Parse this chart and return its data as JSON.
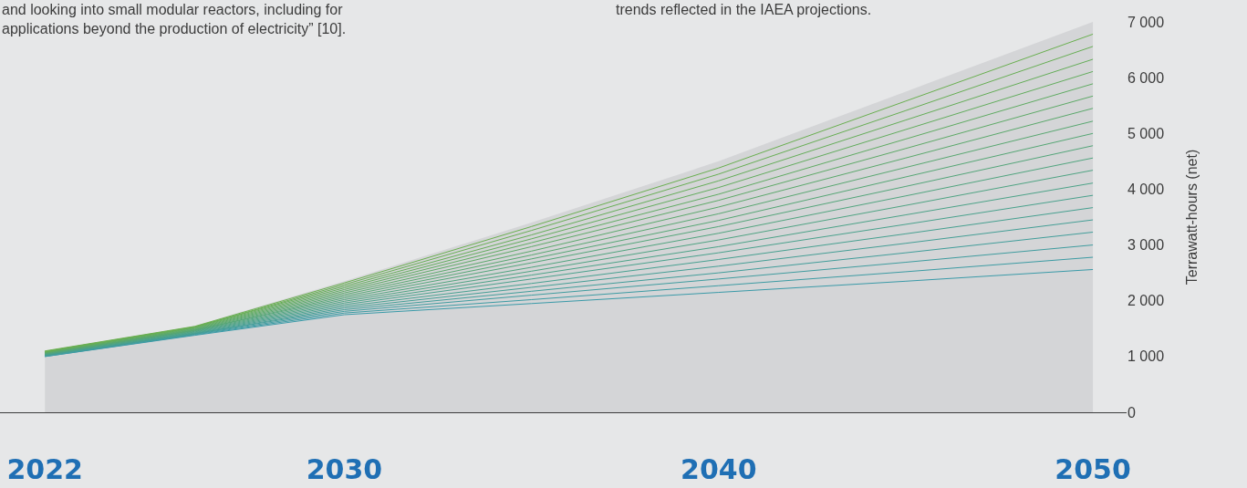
{
  "chart_data": {
    "type": "line",
    "ylabel": "Terrawatt-hours (net)",
    "x": [
      2022,
      2026,
      2030,
      2035,
      2040,
      2045,
      2050
    ],
    "xlim": [
      2020.8,
      2050.9
    ],
    "xticks": [
      2022,
      2030,
      2040,
      2050
    ],
    "ylim": [
      0,
      7000
    ],
    "yticks": [
      0,
      {
        "value": 1000,
        "label": "1 000"
      },
      {
        "value": 2000,
        "label": "2 000"
      },
      {
        "value": 3000,
        "label": "3 000"
      },
      {
        "value": 4000,
        "label": "4 000"
      },
      {
        "value": 5000,
        "label": "5 000"
      },
      {
        "value": 6000,
        "label": "6 000"
      },
      {
        "value": 7000,
        "label": "7 000"
      }
    ],
    "grid": false,
    "annotations": [
      "and looking into small modular reactors, including for\napplications beyond the production of electricity” [10].",
      "trends reflected in the IAEA projections."
    ],
    "series": [
      {
        "type": "area",
        "color": "#d4d5d7",
        "values": [
          1100,
          1550,
          2350,
          3400,
          4500,
          5750,
          7000
        ]
      },
      {
        "color": "#3a9aa8",
        "values": [
          1000,
          1380,
          1750,
          1950,
          2150,
          2350,
          2560
        ]
      },
      {
        "color": "#3c9ba3",
        "values": [
          1000,
          1390,
          1780,
          2020,
          2270,
          2520,
          2780
        ]
      },
      {
        "color": "#3f9c9f",
        "values": [
          1010,
          1400,
          1810,
          2100,
          2390,
          2690,
          3000
        ]
      },
      {
        "color": "#419d9a",
        "values": [
          1020,
          1410,
          1840,
          2170,
          2500,
          2860,
          3230
        ]
      },
      {
        "color": "#449e95",
        "values": [
          1020,
          1410,
          1870,
          2240,
          2620,
          3030,
          3450
        ]
      },
      {
        "color": "#46a090",
        "values": [
          1030,
          1420,
          1900,
          2310,
          2740,
          3200,
          3670
        ]
      },
      {
        "color": "#49a18c",
        "values": [
          1030,
          1430,
          1930,
          2390,
          2860,
          3370,
          3890
        ]
      },
      {
        "color": "#4ba287",
        "values": [
          1040,
          1440,
          1960,
          2460,
          2970,
          3540,
          4110
        ]
      },
      {
        "color": "#4ea382",
        "values": [
          1040,
          1450,
          1990,
          2530,
          3090,
          3710,
          4340
        ]
      },
      {
        "color": "#50a47e",
        "values": [
          1050,
          1460,
          2020,
          2600,
          3210,
          3880,
          4560
        ]
      },
      {
        "color": "#53a579",
        "values": [
          1050,
          1470,
          2050,
          2680,
          3330,
          4050,
          4780
        ]
      },
      {
        "color": "#55a674",
        "values": [
          1060,
          1470,
          2080,
          2750,
          3440,
          4220,
          5000
        ]
      },
      {
        "color": "#58a770",
        "values": [
          1060,
          1480,
          2110,
          2820,
          3560,
          4390,
          5220
        ]
      },
      {
        "color": "#5aa86b",
        "values": [
          1070,
          1490,
          2140,
          2890,
          3680,
          4560,
          5450
        ]
      },
      {
        "color": "#5da966",
        "values": [
          1070,
          1500,
          2170,
          2970,
          3800,
          4730,
          5670
        ]
      },
      {
        "color": "#5fab62",
        "values": [
          1080,
          1510,
          2200,
          3040,
          3910,
          4900,
          5890
        ]
      },
      {
        "color": "#62ac5d",
        "values": [
          1080,
          1520,
          2230,
          3110,
          4030,
          5070,
          6110
        ]
      },
      {
        "color": "#64ad58",
        "values": [
          1090,
          1530,
          2260,
          3180,
          4150,
          5240,
          6330
        ]
      },
      {
        "color": "#67ae54",
        "values": [
          1090,
          1530,
          2290,
          3260,
          4270,
          5410,
          6560
        ]
      },
      {
        "color": "#69af4f",
        "values": [
          1100,
          1540,
          2320,
          3330,
          4380,
          5580,
          6780
        ]
      }
    ]
  }
}
